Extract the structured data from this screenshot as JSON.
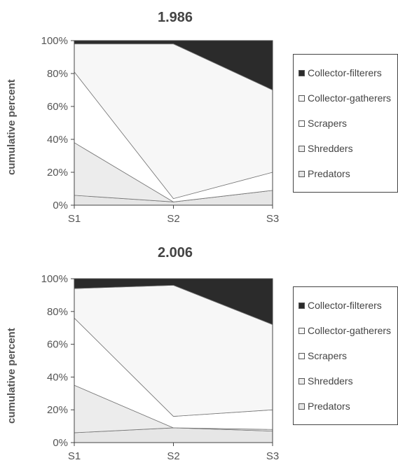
{
  "chart_data": [
    {
      "type": "area",
      "title": "1.986",
      "ylabel": "cumulative percent",
      "categories": [
        "S1",
        "S2",
        "S3"
      ],
      "ylim": [
        0,
        100
      ],
      "yticks": [
        "0%",
        "20%",
        "40%",
        "60%",
        "80%",
        "100%"
      ],
      "legend_position": "right",
      "series": [
        {
          "name": "Predators",
          "values": [
            6,
            2,
            9
          ],
          "color": "#e6e6e6"
        },
        {
          "name": "Shredders",
          "values": [
            32,
            0,
            0
          ],
          "color": "#ececec"
        },
        {
          "name": "Scrapers",
          "values": [
            43,
            2,
            11
          ],
          "color": "#ffffff"
        },
        {
          "name": "Collector-gatherers",
          "values": [
            17,
            94,
            50
          ],
          "color": "#f7f7f7"
        },
        {
          "name": "Collector-filterers",
          "values": [
            2,
            2,
            30
          ],
          "color": "#2b2b2b"
        }
      ]
    },
    {
      "type": "area",
      "title": "2.006",
      "ylabel": "cumulative percent",
      "categories": [
        "S1",
        "S2",
        "S3"
      ],
      "ylim": [
        0,
        100
      ],
      "yticks": [
        "0%",
        "20%",
        "40%",
        "60%",
        "80%",
        "100%"
      ],
      "legend_position": "right",
      "series": [
        {
          "name": "Predators",
          "values": [
            6,
            9,
            7
          ],
          "color": "#e6e6e6"
        },
        {
          "name": "Shredders",
          "values": [
            29,
            0,
            1
          ],
          "color": "#ececec"
        },
        {
          "name": "Scrapers",
          "values": [
            41,
            7,
            12
          ],
          "color": "#ffffff"
        },
        {
          "name": "Collector-gatherers",
          "values": [
            18,
            80,
            52
          ],
          "color": "#f7f7f7"
        },
        {
          "name": "Collector-filterers",
          "values": [
            6,
            4,
            28
          ],
          "color": "#2b2b2b"
        }
      ]
    }
  ],
  "legend": {
    "items": [
      {
        "label": "Collector-filterers",
        "color": "#2b2b2b"
      },
      {
        "label": "Collector-gatherers",
        "color": "#f7f7f7"
      },
      {
        "label": "Scrapers",
        "color": "#ffffff"
      },
      {
        "label": "Shredders",
        "color": "#ececec"
      },
      {
        "label": "Predators",
        "color": "#e6e6e6"
      }
    ]
  }
}
